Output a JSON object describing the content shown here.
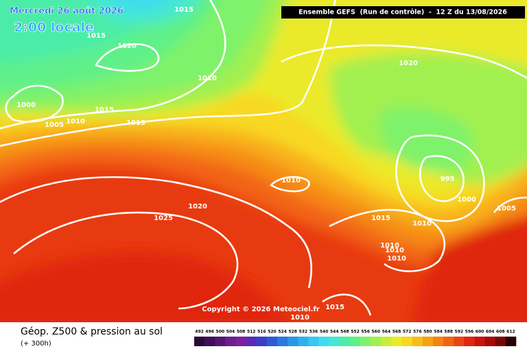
{
  "header": {
    "date": "Mercredi 26 août 2026",
    "time": "2:00 locale",
    "run": "Ensemble GEFS  (Run de contrôle)  -  12 Z du 13/08/2026"
  },
  "isobars": [
    "1015",
    "1015",
    "1020",
    "1010",
    "1000",
    "1015",
    "1005",
    "1010",
    "1015",
    "1020",
    "1010",
    "995",
    "1000",
    "1005",
    "1020",
    "1025",
    "1015",
    "1010",
    "1010",
    "1010",
    "1010",
    "1015",
    "1010"
  ],
  "copyright": "Copyright © 2026 Meteociel.fr",
  "footer": {
    "title": "Géop. Z500 & pression au sol",
    "lead": "(+ 300h)"
  },
  "scale": {
    "labels": [
      492,
      496,
      500,
      504,
      508,
      512,
      516,
      520,
      524,
      528,
      532,
      536,
      540,
      544,
      548,
      552,
      556,
      560,
      564,
      568,
      572,
      576,
      580,
      584,
      588,
      592,
      596,
      600,
      604,
      608,
      612
    ],
    "colors": [
      "#2a0a3a",
      "#3d0f57",
      "#551672",
      "#6a1f8a",
      "#7d1fa0",
      "#5a2bb5",
      "#3b3fc8",
      "#2d5bd6",
      "#2a78e0",
      "#2b95e8",
      "#2fb0ef",
      "#34c8f3",
      "#3fdcf0",
      "#45e8d0",
      "#4ceca8",
      "#5ef08a",
      "#7ef26a",
      "#a2f050",
      "#c8ee3a",
      "#eaea2a",
      "#f8d820",
      "#f8bc1a",
      "#f6a016",
      "#f48214",
      "#f06412",
      "#ea4410",
      "#e0260e",
      "#c8140e",
      "#a80a0a",
      "#780606",
      "#2a0000"
    ]
  }
}
